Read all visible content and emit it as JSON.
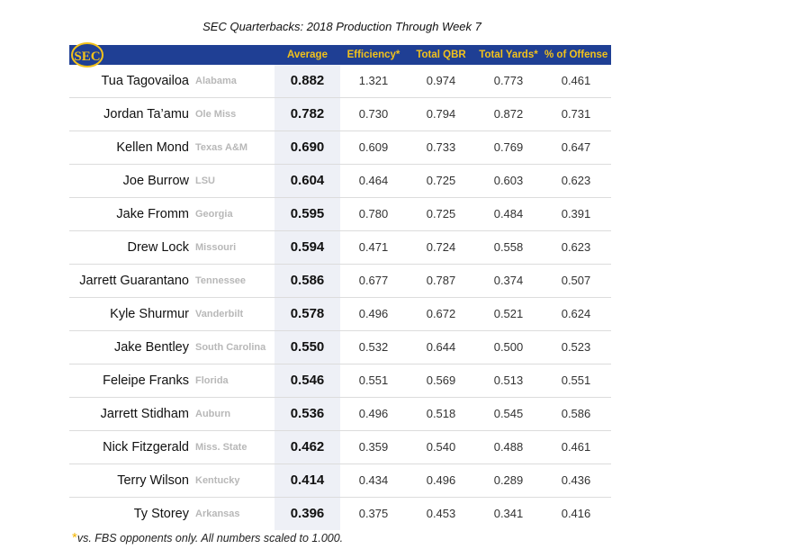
{
  "chart_data": {
    "type": "table",
    "title": "SEC Quarterbacks: 2018 Production Through Week 7",
    "logo_text": "SEC",
    "columns": [
      "Average",
      "Efficiency*",
      "Total QBR",
      "Total Yards*",
      "% of Offense"
    ],
    "rows": [
      {
        "name": "Tua Tagovailoa",
        "team": "Alabama",
        "average": "0.882",
        "efficiency": "1.321",
        "qbr": "0.974",
        "yards": "0.773",
        "offense": "0.461"
      },
      {
        "name": "Jordan Ta’amu",
        "team": "Ole Miss",
        "average": "0.782",
        "efficiency": "0.730",
        "qbr": "0.794",
        "yards": "0.872",
        "offense": "0.731"
      },
      {
        "name": "Kellen Mond",
        "team": "Texas A&M",
        "average": "0.690",
        "efficiency": "0.609",
        "qbr": "0.733",
        "yards": "0.769",
        "offense": "0.647"
      },
      {
        "name": "Joe Burrow",
        "team": "LSU",
        "average": "0.604",
        "efficiency": "0.464",
        "qbr": "0.725",
        "yards": "0.603",
        "offense": "0.623"
      },
      {
        "name": "Jake Fromm",
        "team": "Georgia",
        "average": "0.595",
        "efficiency": "0.780",
        "qbr": "0.725",
        "yards": "0.484",
        "offense": "0.391"
      },
      {
        "name": "Drew Lock",
        "team": "Missouri",
        "average": "0.594",
        "efficiency": "0.471",
        "qbr": "0.724",
        "yards": "0.558",
        "offense": "0.623"
      },
      {
        "name": "Jarrett Guarantano",
        "team": "Tennessee",
        "average": "0.586",
        "efficiency": "0.677",
        "qbr": "0.787",
        "yards": "0.374",
        "offense": "0.507"
      },
      {
        "name": "Kyle Shurmur",
        "team": "Vanderbilt",
        "average": "0.578",
        "efficiency": "0.496",
        "qbr": "0.672",
        "yards": "0.521",
        "offense": "0.624"
      },
      {
        "name": "Jake Bentley",
        "team": "South Carolina",
        "average": "0.550",
        "efficiency": "0.532",
        "qbr": "0.644",
        "yards": "0.500",
        "offense": "0.523"
      },
      {
        "name": "Feleipe Franks",
        "team": "Florida",
        "average": "0.546",
        "efficiency": "0.551",
        "qbr": "0.569",
        "yards": "0.513",
        "offense": "0.551"
      },
      {
        "name": "Jarrett Stidham",
        "team": "Auburn",
        "average": "0.536",
        "efficiency": "0.496",
        "qbr": "0.518",
        "yards": "0.545",
        "offense": "0.586"
      },
      {
        "name": "Nick Fitzgerald",
        "team": "Miss. State",
        "average": "0.462",
        "efficiency": "0.359",
        "qbr": "0.540",
        "yards": "0.488",
        "offense": "0.461"
      },
      {
        "name": "Terry Wilson",
        "team": "Kentucky",
        "average": "0.414",
        "efficiency": "0.434",
        "qbr": "0.496",
        "yards": "0.289",
        "offense": "0.436"
      },
      {
        "name": "Ty Storey",
        "team": "Arkansas",
        "average": "0.396",
        "efficiency": "0.375",
        "qbr": "0.453",
        "yards": "0.341",
        "offense": "0.416"
      }
    ],
    "footnote_marker": "*",
    "footnote": "vs. FBS opponents only. All numbers scaled to 1.000.",
    "colors": {
      "header_bg": "#1f3f94",
      "header_text": "#f2c21b",
      "average_bg": "#eef0f6",
      "team_text": "#b8b8b8"
    }
  }
}
